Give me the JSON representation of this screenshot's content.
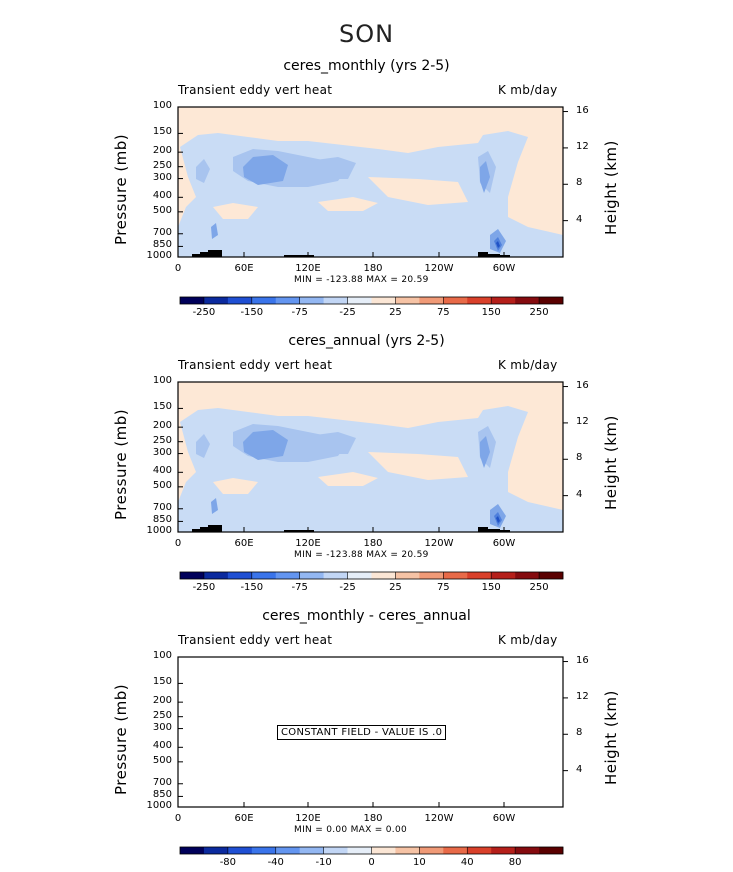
{
  "season": "SON",
  "chart_data": [
    {
      "type": "contour",
      "title": "ceres_monthly (yrs 2-5)",
      "left_label": "Transient eddy vert heat",
      "right_label": "K mb/day",
      "xlabel": "",
      "ylabel": "Pressure (mb)",
      "ylabel_right": "Height (km)",
      "x_ticks": [
        "0",
        "60E",
        "120E",
        "180",
        "120W",
        "60W"
      ],
      "y_ticks": [
        "100",
        "150",
        "200",
        "250",
        "300",
        "400",
        "500",
        "700",
        "850",
        "1000"
      ],
      "y_values": [
        100,
        150,
        200,
        250,
        300,
        400,
        500,
        700,
        850,
        1000
      ],
      "height_ticks": [
        "16",
        "12",
        "8",
        "4"
      ],
      "height_values": [
        16,
        12,
        8,
        4
      ],
      "min_max_text": "MIN = -123.88   MAX =  20.59",
      "min": -123.88,
      "max": 20.59,
      "colorbar_labels": [
        "-250",
        "-150",
        "-75",
        "-25",
        "25",
        "75",
        "150",
        "250"
      ]
    },
    {
      "type": "contour",
      "title": "ceres_annual (yrs 2-5)",
      "left_label": "Transient eddy vert heat",
      "right_label": "K mb/day",
      "xlabel": "",
      "ylabel": "Pressure (mb)",
      "ylabel_right": "Height (km)",
      "x_ticks": [
        "0",
        "60E",
        "120E",
        "180",
        "120W",
        "60W"
      ],
      "y_ticks": [
        "100",
        "150",
        "200",
        "250",
        "300",
        "400",
        "500",
        "700",
        "850",
        "1000"
      ],
      "y_values": [
        100,
        150,
        200,
        250,
        300,
        400,
        500,
        700,
        850,
        1000
      ],
      "height_ticks": [
        "16",
        "12",
        "8",
        "4"
      ],
      "height_values": [
        16,
        12,
        8,
        4
      ],
      "min_max_text": "MIN = -123.88   MAX =  20.59",
      "min": -123.88,
      "max": 20.59,
      "colorbar_labels": [
        "-250",
        "-150",
        "-75",
        "-25",
        "25",
        "75",
        "150",
        "250"
      ]
    },
    {
      "type": "contour",
      "title": "ceres_monthly - ceres_annual",
      "left_label": "Transient eddy vert heat",
      "right_label": "K mb/day",
      "xlabel": "",
      "ylabel": "Pressure (mb)",
      "ylabel_right": "Height (km)",
      "x_ticks": [
        "0",
        "60E",
        "120E",
        "180",
        "120W",
        "60W"
      ],
      "y_ticks": [
        "100",
        "150",
        "200",
        "250",
        "300",
        "400",
        "500",
        "700",
        "850",
        "1000"
      ],
      "y_values": [
        100,
        150,
        200,
        250,
        300,
        400,
        500,
        700,
        850,
        1000
      ],
      "height_ticks": [
        "16",
        "12",
        "8",
        "4"
      ],
      "height_values": [
        16,
        12,
        8,
        4
      ],
      "min_max_text": "MIN =    0.00   MAX =    0.00",
      "min": 0.0,
      "max": 0.0,
      "constant_text": "CONSTANT FIELD - VALUE IS .0",
      "colorbar_labels": [
        "-80",
        "-40",
        "-10",
        "0",
        "10",
        "40",
        "80"
      ]
    }
  ],
  "colorbar_colors": [
    "#00005a",
    "#0b2a9e",
    "#1f4fd3",
    "#3a74ea",
    "#6395f0",
    "#93b7f2",
    "#c2d6f5",
    "#e6eef8",
    "#fbe6d5",
    "#f6c3a5",
    "#f09a77",
    "#e86a48",
    "#d9402a",
    "#b51f1a",
    "#850b0f",
    "#5a0000"
  ]
}
